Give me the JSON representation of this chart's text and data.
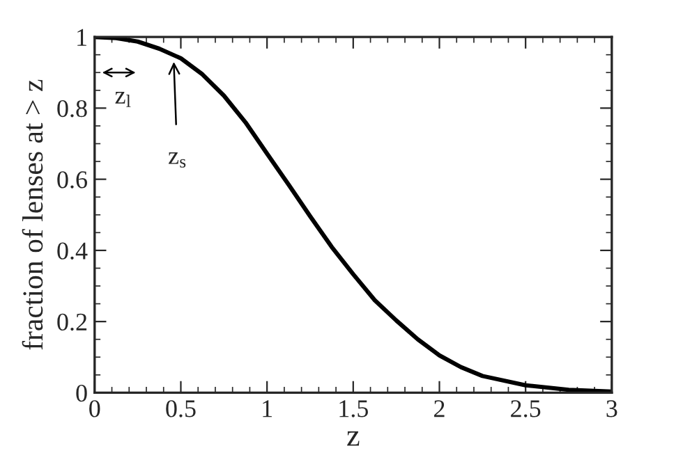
{
  "chart_data": {
    "type": "line",
    "xlabel": "z",
    "ylabel": "fraction of lenses at > z",
    "x": [
      0,
      0.125,
      0.25,
      0.375,
      0.5,
      0.625,
      0.75,
      0.875,
      1.0,
      1.125,
      1.25,
      1.375,
      1.5,
      1.625,
      1.75,
      1.875,
      2.0,
      2.125,
      2.25,
      2.5,
      2.75,
      3.0
    ],
    "series": [
      {
        "color": "#000000",
        "values": [
          1.0,
          0.997,
          0.987,
          0.967,
          0.94,
          0.895,
          0.835,
          0.76,
          0.672,
          0.585,
          0.496,
          0.41,
          0.333,
          0.26,
          0.203,
          0.15,
          0.105,
          0.072,
          0.047,
          0.021,
          0.008,
          0.003
        ]
      }
    ],
    "xlim": [
      0,
      3
    ],
    "ylim": [
      0,
      1
    ],
    "xticks": [
      0,
      0.5,
      1,
      1.5,
      2,
      2.5,
      3
    ],
    "yticks": [
      0,
      0.2,
      0.4,
      0.6,
      0.8,
      1
    ],
    "annotations": [
      "z$_{l}$",
      "z$_{s}$"
    ],
    "grid": false,
    "legend": false,
    "marker": "none",
    "line_style": "solid"
  }
}
